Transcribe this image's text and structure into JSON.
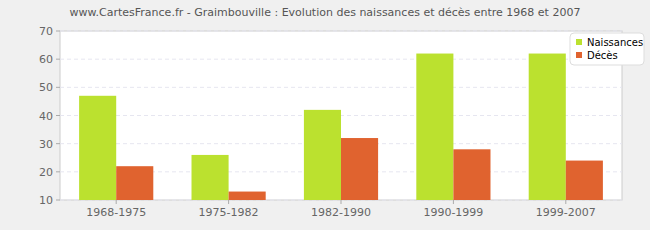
{
  "chart_data": {
    "type": "bar",
    "title": "www.CartesFrance.fr - Graimbouville : Evolution des naissances et décès entre 1968 et 2007",
    "categories": [
      "1968-1975",
      "1975-1982",
      "1982-1990",
      "1990-1999",
      "1999-2007"
    ],
    "series": [
      {
        "name": "Naissances",
        "color": "#bbe12f",
        "values": [
          47,
          26,
          42,
          62,
          62
        ]
      },
      {
        "name": "Décès",
        "color": "#e0632f",
        "values": [
          22,
          13,
          32,
          28,
          24
        ]
      }
    ],
    "ylim": [
      10,
      70
    ],
    "yticks": [
      10,
      20,
      30,
      40,
      50,
      60,
      70
    ],
    "grid": true,
    "legend": "top-right"
  }
}
